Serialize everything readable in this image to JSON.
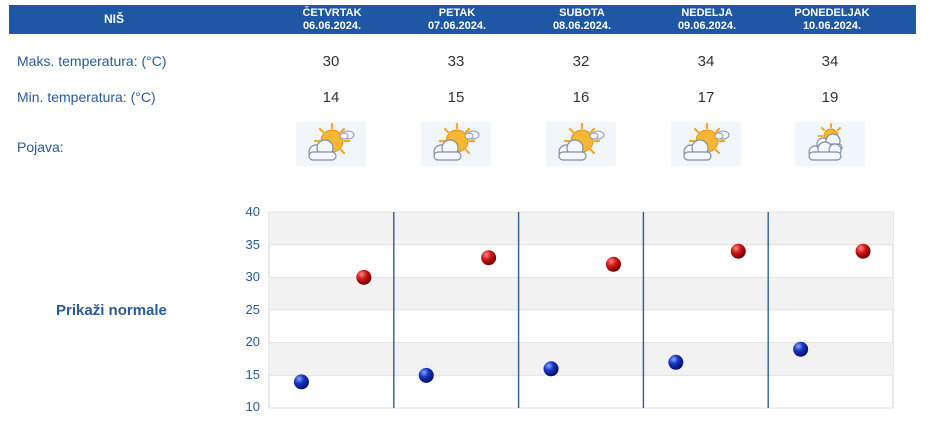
{
  "header": {
    "city": "NIŠ",
    "days": [
      {
        "day": "ČETVRTAK",
        "date": "06.06.2024."
      },
      {
        "day": "PETAK",
        "date": "07.06.2024."
      },
      {
        "day": "SUBOTA",
        "date": "08.06.2024."
      },
      {
        "day": "NEDELJA",
        "date": "09.06.2024."
      },
      {
        "day": "PONEDELJAK",
        "date": "10.06.2024."
      }
    ]
  },
  "rows": {
    "max_label": "Maks. temperatura: (°C)",
    "min_label": "Min. temperatura: (°C)",
    "phen_label": "Pojava:",
    "max_values": [
      "30",
      "33",
      "32",
      "34",
      "34"
    ],
    "min_values": [
      "14",
      "15",
      "16",
      "17",
      "19"
    ],
    "phen_icons": [
      "partly-sunny-icon",
      "partly-sunny-icon",
      "partly-sunny-icon",
      "partly-sunny-icon",
      "mostly-cloudy-icon"
    ]
  },
  "normals_link": "Prikaži normale",
  "chart_data": {
    "type": "scatter",
    "y_ticks": [
      "40",
      "35",
      "30",
      "25",
      "20",
      "15",
      "10"
    ],
    "ylim": [
      10,
      40
    ],
    "grid": true,
    "categories": [
      "06.06.2024.",
      "07.06.2024.",
      "08.06.2024.",
      "09.06.2024.",
      "10.06.2024."
    ],
    "series": [
      {
        "kind": "max",
        "color": "#cc1111",
        "values": [
          30,
          33,
          32,
          34,
          34
        ]
      },
      {
        "kind": "min",
        "color": "#1133bb",
        "values": [
          14,
          15,
          16,
          17,
          19
        ]
      }
    ]
  },
  "colors": {
    "header_bg": "#1e57a3",
    "label": "#2a5a9a",
    "separator": "#2f5e96"
  }
}
